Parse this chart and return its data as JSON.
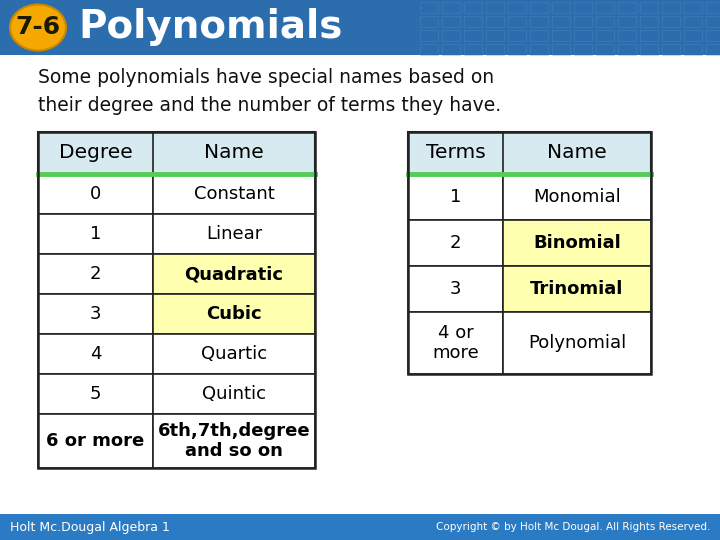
{
  "title_badge": "7-6",
  "title_text": "Polynomials",
  "header_bg": "#2B6DAD",
  "header_text_color": "#FFFFFF",
  "badge_bg": "#F5A800",
  "badge_text_color": "#1A1A00",
  "body_bg": "#FFFFFF",
  "slide_bg": "#FFFFFF",
  "subtitle": "Some polynomials have special names based on\ntheir degree and the number of terms they have.",
  "subtitle_color": "#111111",
  "table1_headers": [
    "Degree",
    "Name"
  ],
  "table1_rows": [
    [
      "0",
      "Constant",
      "white",
      "white"
    ],
    [
      "1",
      "Linear",
      "white",
      "white"
    ],
    [
      "2",
      "Quadratic",
      "white",
      "#FFFFB0"
    ],
    [
      "3",
      "Cubic",
      "white",
      "#FFFFB0"
    ],
    [
      "4",
      "Quartic",
      "white",
      "white"
    ],
    [
      "5",
      "Quintic",
      "white",
      "white"
    ],
    [
      "6 or more",
      "6th,7th,degree\nand so on",
      "white",
      "white"
    ]
  ],
  "table2_headers": [
    "Terms",
    "Name"
  ],
  "table2_rows": [
    [
      "1",
      "Monomial",
      "white",
      "white"
    ],
    [
      "2",
      "Binomial",
      "white",
      "#FFFFB0"
    ],
    [
      "3",
      "Trinomial",
      "white",
      "#FFFFB0"
    ],
    [
      "4 or\nmore",
      "Polynomial",
      "white",
      "white"
    ]
  ],
  "header_row_bg": "#D6EAF0",
  "header_separator_color": "#55CC55",
  "table_border_color": "#222222",
  "footer_text": "Holt Mc.Dougal Algebra 1",
  "footer_right": "Copyright © by Holt Mc Dougal. All Rights Reserved.",
  "footer_bg": "#2B7BC4",
  "footer_text_color": "#FFFFFF"
}
